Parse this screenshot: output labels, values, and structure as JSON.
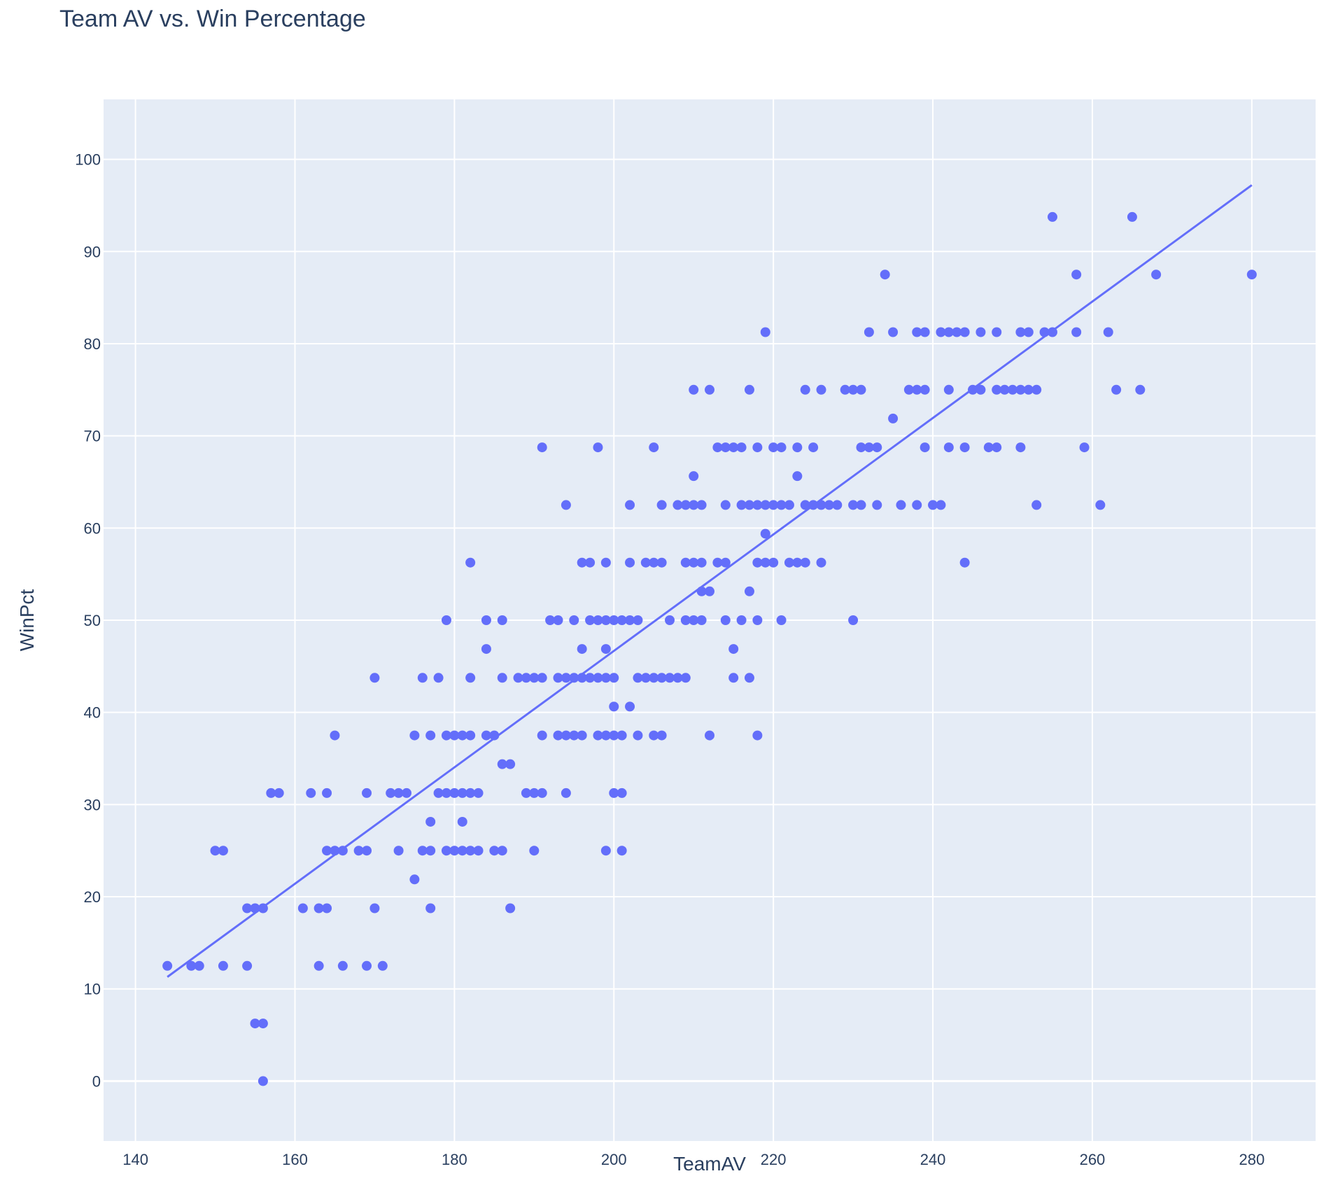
{
  "chart_data": {
    "type": "scatter",
    "title": "Team AV vs. Win Percentage",
    "xlabel": "TeamAV",
    "ylabel": "WinPct",
    "xlim": [
      136,
      288
    ],
    "ylim": [
      -6.5,
      106.5
    ],
    "x_ticks": [
      140,
      160,
      180,
      200,
      220,
      240,
      260,
      280
    ],
    "y_ticks": [
      0,
      10,
      20,
      30,
      40,
      50,
      60,
      70,
      80,
      90,
      100
    ],
    "grid": true,
    "legend": "none",
    "colors": {
      "marker": "#636efa",
      "plot_bg": "#e5ecf6",
      "grid": "#ffffff",
      "text": "#2a3f5f"
    },
    "trendline": {
      "x": [
        144,
        280
      ],
      "y": [
        11.3,
        97.2
      ]
    },
    "points": [
      [
        144,
        12.5
      ],
      [
        147,
        12.5
      ],
      [
        148,
        12.5
      ],
      [
        150,
        25
      ],
      [
        151,
        25
      ],
      [
        151,
        12.5
      ],
      [
        154,
        18.75
      ],
      [
        154,
        12.5
      ],
      [
        155,
        18.75
      ],
      [
        155,
        6.25
      ],
      [
        156,
        18.75
      ],
      [
        156,
        6.25
      ],
      [
        156,
        0
      ],
      [
        157,
        31.25
      ],
      [
        158,
        31.25
      ],
      [
        161,
        18.75
      ],
      [
        162,
        31.25
      ],
      [
        163,
        18.75
      ],
      [
        163,
        12.5
      ],
      [
        164,
        31.25
      ],
      [
        164,
        25
      ],
      [
        164,
        18.75
      ],
      [
        165,
        37.5
      ],
      [
        165,
        25
      ],
      [
        166,
        25
      ],
      [
        166,
        12.5
      ],
      [
        168,
        25
      ],
      [
        169,
        31.25
      ],
      [
        169,
        25
      ],
      [
        169,
        12.5
      ],
      [
        170,
        43.75
      ],
      [
        170,
        18.75
      ],
      [
        171,
        12.5
      ],
      [
        172,
        31.25
      ],
      [
        173,
        31.25
      ],
      [
        173,
        25
      ],
      [
        174,
        31.25
      ],
      [
        175,
        37.5
      ],
      [
        175,
        21.88
      ],
      [
        176,
        43.75
      ],
      [
        176,
        25
      ],
      [
        177,
        37.5
      ],
      [
        177,
        28.13
      ],
      [
        177,
        25
      ],
      [
        177,
        18.75
      ],
      [
        178,
        43.75
      ],
      [
        178,
        31.25
      ],
      [
        179,
        50
      ],
      [
        179,
        37.5
      ],
      [
        179,
        31.25
      ],
      [
        179,
        25
      ],
      [
        180,
        37.5
      ],
      [
        180,
        31.25
      ],
      [
        180,
        25
      ],
      [
        181,
        37.5
      ],
      [
        181,
        31.25
      ],
      [
        181,
        28.13
      ],
      [
        181,
        25
      ],
      [
        182,
        56.25
      ],
      [
        182,
        43.75
      ],
      [
        182,
        37.5
      ],
      [
        182,
        31.25
      ],
      [
        182,
        25
      ],
      [
        183,
        31.25
      ],
      [
        183,
        25
      ],
      [
        184,
        50
      ],
      [
        184,
        46.88
      ],
      [
        184,
        37.5
      ],
      [
        185,
        37.5
      ],
      [
        185,
        25
      ],
      [
        186,
        50
      ],
      [
        186,
        43.75
      ],
      [
        186,
        34.38
      ],
      [
        186,
        25
      ],
      [
        187,
        34.38
      ],
      [
        187,
        18.75
      ],
      [
        188,
        43.75
      ],
      [
        189,
        43.75
      ],
      [
        189,
        31.25
      ],
      [
        190,
        43.75
      ],
      [
        190,
        31.25
      ],
      [
        190,
        25
      ],
      [
        191,
        68.75
      ],
      [
        191,
        43.75
      ],
      [
        191,
        37.5
      ],
      [
        191,
        31.25
      ],
      [
        192,
        50
      ],
      [
        193,
        50
      ],
      [
        193,
        43.75
      ],
      [
        193,
        37.5
      ],
      [
        194,
        62.5
      ],
      [
        194,
        43.75
      ],
      [
        194,
        37.5
      ],
      [
        194,
        31.25
      ],
      [
        195,
        50
      ],
      [
        195,
        43.75
      ],
      [
        195,
        37.5
      ],
      [
        196,
        56.25
      ],
      [
        196,
        46.88
      ],
      [
        196,
        43.75
      ],
      [
        196,
        37.5
      ],
      [
        197,
        56.25
      ],
      [
        197,
        50
      ],
      [
        197,
        43.75
      ],
      [
        198,
        68.75
      ],
      [
        198,
        50
      ],
      [
        198,
        43.75
      ],
      [
        198,
        37.5
      ],
      [
        199,
        56.25
      ],
      [
        199,
        50
      ],
      [
        199,
        46.88
      ],
      [
        199,
        43.75
      ],
      [
        199,
        37.5
      ],
      [
        199,
        25
      ],
      [
        200,
        50
      ],
      [
        200,
        43.75
      ],
      [
        200,
        40.63
      ],
      [
        200,
        37.5
      ],
      [
        200,
        31.25
      ],
      [
        201,
        50
      ],
      [
        201,
        37.5
      ],
      [
        201,
        31.25
      ],
      [
        201,
        25
      ],
      [
        202,
        62.5
      ],
      [
        202,
        56.25
      ],
      [
        202,
        50
      ],
      [
        202,
        40.63
      ],
      [
        203,
        50
      ],
      [
        203,
        43.75
      ],
      [
        203,
        37.5
      ],
      [
        204,
        56.25
      ],
      [
        204,
        43.75
      ],
      [
        205,
        68.75
      ],
      [
        205,
        56.25
      ],
      [
        205,
        43.75
      ],
      [
        205,
        37.5
      ],
      [
        206,
        62.5
      ],
      [
        206,
        56.25
      ],
      [
        206,
        43.75
      ],
      [
        206,
        37.5
      ],
      [
        207,
        50
      ],
      [
        207,
        43.75
      ],
      [
        208,
        62.5
      ],
      [
        208,
        43.75
      ],
      [
        209,
        62.5
      ],
      [
        209,
        56.25
      ],
      [
        209,
        50
      ],
      [
        209,
        43.75
      ],
      [
        210,
        75
      ],
      [
        210,
        65.63
      ],
      [
        210,
        62.5
      ],
      [
        210,
        56.25
      ],
      [
        210,
        50
      ],
      [
        211,
        62.5
      ],
      [
        211,
        56.25
      ],
      [
        211,
        53.13
      ],
      [
        211,
        50
      ],
      [
        212,
        75
      ],
      [
        212,
        53.13
      ],
      [
        212,
        37.5
      ],
      [
        213,
        68.75
      ],
      [
        213,
        56.25
      ],
      [
        214,
        68.75
      ],
      [
        214,
        62.5
      ],
      [
        214,
        56.25
      ],
      [
        214,
        50
      ],
      [
        215,
        68.75
      ],
      [
        215,
        46.88
      ],
      [
        215,
        43.75
      ],
      [
        216,
        68.75
      ],
      [
        216,
        62.5
      ],
      [
        216,
        50
      ],
      [
        217,
        75
      ],
      [
        217,
        62.5
      ],
      [
        217,
        53.13
      ],
      [
        217,
        43.75
      ],
      [
        218,
        68.75
      ],
      [
        218,
        62.5
      ],
      [
        218,
        56.25
      ],
      [
        218,
        50
      ],
      [
        218,
        37.5
      ],
      [
        219,
        81.25
      ],
      [
        219,
        62.5
      ],
      [
        219,
        59.38
      ],
      [
        219,
        56.25
      ],
      [
        220,
        68.75
      ],
      [
        220,
        62.5
      ],
      [
        220,
        56.25
      ],
      [
        221,
        68.75
      ],
      [
        221,
        62.5
      ],
      [
        221,
        50
      ],
      [
        222,
        62.5
      ],
      [
        222,
        56.25
      ],
      [
        223,
        68.75
      ],
      [
        223,
        65.63
      ],
      [
        223,
        56.25
      ],
      [
        224,
        75
      ],
      [
        224,
        62.5
      ],
      [
        224,
        56.25
      ],
      [
        225,
        68.75
      ],
      [
        225,
        62.5
      ],
      [
        226,
        75
      ],
      [
        226,
        62.5
      ],
      [
        226,
        56.25
      ],
      [
        227,
        62.5
      ],
      [
        228,
        62.5
      ],
      [
        229,
        75
      ],
      [
        230,
        75
      ],
      [
        230,
        62.5
      ],
      [
        230,
        50
      ],
      [
        231,
        75
      ],
      [
        231,
        68.75
      ],
      [
        231,
        62.5
      ],
      [
        232,
        81.25
      ],
      [
        232,
        68.75
      ],
      [
        233,
        68.75
      ],
      [
        233,
        62.5
      ],
      [
        234,
        87.5
      ],
      [
        235,
        81.25
      ],
      [
        235,
        71.88
      ],
      [
        236,
        62.5
      ],
      [
        237,
        75
      ],
      [
        238,
        81.25
      ],
      [
        238,
        75
      ],
      [
        238,
        62.5
      ],
      [
        239,
        81.25
      ],
      [
        239,
        75
      ],
      [
        239,
        68.75
      ],
      [
        240,
        62.5
      ],
      [
        241,
        81.25
      ],
      [
        241,
        62.5
      ],
      [
        242,
        81.25
      ],
      [
        242,
        75
      ],
      [
        242,
        68.75
      ],
      [
        243,
        81.25
      ],
      [
        244,
        81.25
      ],
      [
        244,
        68.75
      ],
      [
        244,
        56.25
      ],
      [
        245,
        75
      ],
      [
        246,
        81.25
      ],
      [
        246,
        75
      ],
      [
        247,
        68.75
      ],
      [
        248,
        81.25
      ],
      [
        248,
        75
      ],
      [
        248,
        68.75
      ],
      [
        249,
        75
      ],
      [
        250,
        75
      ],
      [
        251,
        81.25
      ],
      [
        251,
        75
      ],
      [
        251,
        68.75
      ],
      [
        252,
        81.25
      ],
      [
        252,
        75
      ],
      [
        253,
        75
      ],
      [
        253,
        62.5
      ],
      [
        254,
        81.25
      ],
      [
        255,
        93.75
      ],
      [
        255,
        81.25
      ],
      [
        258,
        87.5
      ],
      [
        258,
        81.25
      ],
      [
        259,
        68.75
      ],
      [
        261,
        62.5
      ],
      [
        262,
        81.25
      ],
      [
        263,
        75
      ],
      [
        265,
        93.75
      ],
      [
        266,
        75
      ],
      [
        268,
        87.5
      ],
      [
        280,
        87.5
      ]
    ]
  }
}
